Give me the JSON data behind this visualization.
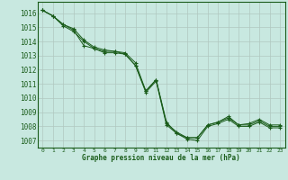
{
  "background_color": "#c8e8e0",
  "grid_color": "#b0c8c0",
  "line_color": "#1a5c1a",
  "spine_color": "#1a5c1a",
  "title": "Graphe pression niveau de la mer (hPa)",
  "xlim": [
    -0.5,
    23.5
  ],
  "ylim": [
    1006.5,
    1016.8
  ],
  "yticks": [
    1007,
    1008,
    1009,
    1010,
    1011,
    1012,
    1013,
    1014,
    1015,
    1016
  ],
  "xticks": [
    0,
    1,
    2,
    3,
    4,
    5,
    6,
    7,
    8,
    9,
    10,
    11,
    12,
    13,
    14,
    15,
    16,
    17,
    18,
    19,
    20,
    21,
    22,
    23
  ],
  "series1": {
    "x": [
      0,
      1,
      2,
      3,
      4,
      5,
      6,
      7,
      8,
      9,
      10,
      11,
      12,
      13,
      14,
      15,
      16,
      17,
      18,
      19,
      20,
      21,
      22,
      23
    ],
    "y": [
      1016.2,
      1015.8,
      1015.2,
      1014.9,
      1014.1,
      1013.6,
      1013.4,
      1013.3,
      1013.2,
      1012.5,
      1010.5,
      1011.3,
      1008.2,
      1007.6,
      1007.2,
      1007.2,
      1008.1,
      1008.3,
      1008.6,
      1008.1,
      1008.1,
      1008.4,
      1008.0,
      1008.0
    ]
  },
  "series2": {
    "x": [
      0,
      1,
      2,
      3,
      4,
      5,
      6,
      7,
      8,
      9,
      10,
      11,
      12,
      13,
      14,
      15,
      16,
      17,
      18,
      19,
      20,
      21,
      22,
      23
    ],
    "y": [
      1016.2,
      1015.8,
      1015.2,
      1014.8,
      1013.7,
      1013.5,
      1013.3,
      1013.3,
      1013.1,
      1012.3,
      1010.5,
      1011.3,
      1008.3,
      1007.5,
      1007.2,
      1007.2,
      1008.1,
      1008.3,
      1008.7,
      1008.1,
      1008.2,
      1008.5,
      1008.1,
      1008.1
    ]
  },
  "series3": {
    "x": [
      0,
      1,
      2,
      3,
      4,
      5,
      6,
      7,
      8,
      9,
      10,
      11,
      12,
      13,
      14,
      15,
      16,
      17,
      18,
      19,
      20,
      21,
      22,
      23
    ],
    "y": [
      1016.2,
      1015.8,
      1015.1,
      1014.7,
      1014.0,
      1013.5,
      1013.2,
      1013.2,
      1013.1,
      1012.3,
      1010.4,
      1011.2,
      1008.1,
      1007.5,
      1007.1,
      1007.0,
      1008.0,
      1008.2,
      1008.5,
      1008.0,
      1008.0,
      1008.3,
      1007.9,
      1007.9
    ]
  }
}
